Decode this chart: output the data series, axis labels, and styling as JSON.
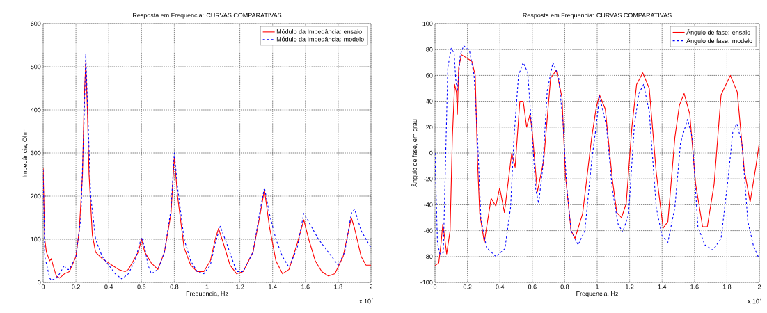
{
  "chart_data": [
    {
      "type": "line",
      "title": "Resposta em Frequencia: CURVAS COMPARATIVAS",
      "xlabel": "Frequencia, Hz",
      "ylabel": "Impedância, Ohm",
      "annotations": [
        "x 10$^{7}$"
      ],
      "xlim": [
        0,
        2
      ],
      "ylim": [
        0,
        600
      ],
      "xticks": [
        0,
        0.2,
        0.4,
        0.6,
        0.8,
        1,
        1.2,
        1.4,
        1.6,
        1.8,
        2
      ],
      "yticks": [
        0,
        100,
        200,
        300,
        400,
        500,
        600
      ],
      "grid": true,
      "legend": "top right",
      "series": [
        {
          "name": "Módulo da Impedância: ensaio",
          "color": "#ff0000",
          "line_style": "solid",
          "x": [
            0,
            0.01,
            0.02,
            0.04,
            0.05,
            0.06,
            0.08,
            0.1,
            0.13,
            0.16,
            0.2,
            0.22,
            0.24,
            0.25,
            0.26,
            0.27,
            0.28,
            0.3,
            0.32,
            0.36,
            0.4,
            0.42,
            0.46,
            0.5,
            0.52,
            0.55,
            0.58,
            0.6,
            0.62,
            0.66,
            0.7,
            0.74,
            0.78,
            0.8,
            0.82,
            0.86,
            0.9,
            0.94,
            0.98,
            1.02,
            1.05,
            1.07,
            1.1,
            1.14,
            1.18,
            1.22,
            1.28,
            1.32,
            1.35,
            1.38,
            1.42,
            1.46,
            1.5,
            1.55,
            1.59,
            1.62,
            1.66,
            1.7,
            1.74,
            1.78,
            1.83,
            1.88,
            1.9,
            1.94,
            1.97,
            2
          ],
          "values": [
            265,
            100,
            70,
            50,
            55,
            40,
            15,
            10,
            20,
            25,
            60,
            120,
            250,
            420,
            510,
            400,
            250,
            110,
            70,
            55,
            45,
            40,
            30,
            25,
            30,
            50,
            70,
            100,
            70,
            45,
            30,
            70,
            160,
            290,
            200,
            80,
            40,
            25,
            25,
            50,
            100,
            125,
            90,
            40,
            20,
            25,
            70,
            150,
            215,
            130,
            50,
            20,
            30,
            90,
            145,
            100,
            50,
            25,
            15,
            20,
            60,
            150,
            125,
            60,
            40,
            40
          ]
        },
        {
          "name": "Módulo da Impedância: modelo",
          "color": "#0000ff",
          "line_style": "dashed",
          "x": [
            0,
            0.01,
            0.04,
            0.05,
            0.08,
            0.1,
            0.13,
            0.14,
            0.16,
            0.2,
            0.23,
            0.25,
            0.26,
            0.27,
            0.29,
            0.32,
            0.36,
            0.4,
            0.44,
            0.48,
            0.52,
            0.56,
            0.6,
            0.62,
            0.64,
            0.66,
            0.7,
            0.74,
            0.78,
            0.8,
            0.82,
            0.86,
            0.9,
            0.94,
            0.98,
            1.02,
            1.05,
            1.08,
            1.12,
            1.18,
            1.22,
            1.28,
            1.32,
            1.35,
            1.38,
            1.42,
            1.46,
            1.5,
            1.55,
            1.59,
            1.62,
            1.68,
            1.74,
            1.8,
            1.84,
            1.88,
            1.9,
            1.94,
            2
          ],
          "values": [
            260,
            60,
            10,
            5,
            10,
            20,
            40,
            30,
            30,
            60,
            150,
            380,
            530,
            420,
            200,
            100,
            60,
            40,
            20,
            8,
            20,
            50,
            105,
            80,
            40,
            20,
            30,
            70,
            170,
            300,
            220,
            100,
            50,
            25,
            20,
            40,
            90,
            130,
            90,
            25,
            25,
            70,
            160,
            220,
            160,
            100,
            60,
            35,
            80,
            160,
            140,
            100,
            70,
            40,
            70,
            160,
            170,
            120,
            80
          ]
        }
      ]
    },
    {
      "type": "line",
      "title": "Resposta em Frequencia: CURVAS COMPARATIVAS",
      "xlabel": "Frequencia, Hz",
      "ylabel": "Ângulo de fase, em grau",
      "annotations": [
        "x 10$^{7}$"
      ],
      "xlim": [
        0,
        2
      ],
      "ylim": [
        -100,
        100
      ],
      "xticks": [
        0,
        0.2,
        0.4,
        0.6,
        0.8,
        1,
        1.2,
        1.4,
        1.6,
        1.8,
        2
      ],
      "yticks": [
        -100,
        -80,
        -60,
        -40,
        -20,
        0,
        20,
        40,
        60,
        80,
        100
      ],
      "grid": true,
      "legend": "top right",
      "series": [
        {
          "name": "Ângulo de fase: ensaio",
          "color": "#ff0000",
          "line_style": "solid",
          "x": [
            0,
            0.023,
            0.037,
            0.048,
            0.054,
            0.072,
            0.093,
            0.107,
            0.121,
            0.132,
            0.138,
            0.146,
            0.163,
            0.227,
            0.248,
            0.262,
            0.276,
            0.304,
            0.346,
            0.375,
            0.399,
            0.428,
            0.473,
            0.494,
            0.523,
            0.544,
            0.565,
            0.586,
            0.6,
            0.631,
            0.67,
            0.713,
            0.748,
            0.783,
            0.804,
            0.839,
            0.863,
            0.91,
            0.966,
            0.994,
            1.014,
            1.05,
            1.093,
            1.121,
            1.15,
            1.179,
            1.214,
            1.243,
            1.281,
            1.321,
            1.364,
            1.407,
            1.436,
            1.479,
            1.507,
            1.536,
            1.571,
            1.607,
            1.65,
            1.679,
            1.721,
            1.764,
            1.821,
            1.864,
            1.907,
            1.943,
            1.979,
            2
          ],
          "values": [
            -87,
            -85,
            -70,
            -55,
            -60,
            -78,
            -60,
            12,
            53,
            47,
            30,
            66,
            76,
            71,
            60,
            -6,
            -47,
            -69,
            -35,
            -41,
            -27,
            -46,
            0,
            -11,
            40,
            40,
            20,
            30,
            16,
            -30,
            -6,
            58,
            64,
            43,
            -17,
            -60,
            -66,
            -47,
            12,
            35,
            45,
            34,
            -20,
            -46,
            -50,
            -39,
            20,
            53,
            62,
            50,
            -15,
            -58,
            -53,
            12,
            37,
            46,
            30,
            -24,
            -57,
            -57,
            -24,
            45,
            60,
            47,
            -13,
            -38,
            -10,
            8
          ]
        },
        {
          "name": "Ângulo de fase: modelo",
          "color": "#0000ff",
          "line_style": "dashed",
          "x": [
            0,
            0.015,
            0.03,
            0.051,
            0.065,
            0.079,
            0.1,
            0.118,
            0.128,
            0.138,
            0.156,
            0.177,
            0.213,
            0.241,
            0.262,
            0.283,
            0.318,
            0.375,
            0.431,
            0.466,
            0.487,
            0.515,
            0.544,
            0.572,
            0.6,
            0.621,
            0.639,
            0.663,
            0.692,
            0.727,
            0.762,
            0.79,
            0.811,
            0.839,
            0.882,
            0.924,
            0.966,
            0.994,
            1.014,
            1.057,
            1.093,
            1.129,
            1.157,
            1.193,
            1.229,
            1.257,
            1.286,
            1.321,
            1.364,
            1.4,
            1.436,
            1.479,
            1.514,
            1.557,
            1.586,
            1.621,
            1.664,
            1.714,
            1.764,
            1.807,
            1.836,
            1.861,
            1.893,
            1.929,
            1.964,
            2
          ],
          "values": [
            0,
            -69,
            -78,
            -77,
            -6,
            66,
            81,
            77,
            57,
            48,
            76,
            83,
            79,
            60,
            12,
            -51,
            -73,
            -80,
            -74,
            -42,
            12,
            60,
            70,
            62,
            12,
            -28,
            -39,
            -13,
            48,
            70,
            59,
            23,
            -24,
            -60,
            -71,
            -60,
            -6,
            21,
            44,
            21,
            -28,
            -55,
            -61,
            -48,
            21,
            46,
            53,
            32,
            -42,
            -64,
            -69,
            -42,
            8,
            26,
            12,
            -57,
            -71,
            -75,
            -66,
            -20,
            16,
            23,
            7,
            -53,
            -72,
            -82
          ]
        }
      ]
    }
  ]
}
